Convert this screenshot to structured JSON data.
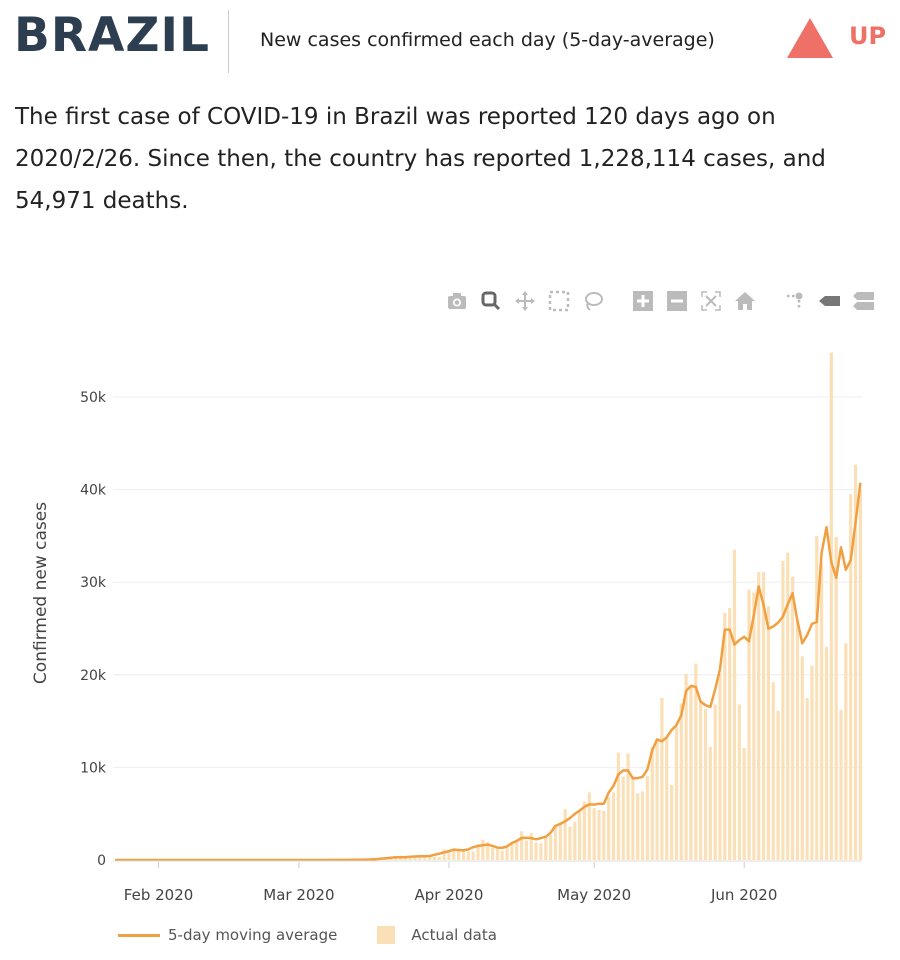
{
  "header": {
    "country": "BRAZIL",
    "subtitle": "New cases confirmed each day (5-day-average)",
    "trend_label": "UP",
    "trend_color": "#ee7067"
  },
  "summary": "The first case of COVID-19 in Brazil was reported 120 days ago on 2020/2/26. Since then, the country has reported 1,228,114 cases, and 54,971 deaths.",
  "toolbar": [
    "camera-icon",
    "zoom-icon",
    "pan-icon",
    "box-select-icon",
    "lasso-select-icon",
    "zoom-in-icon",
    "zoom-out-icon",
    "autoscale-icon",
    "reset-axes-icon",
    "spike-lines-icon",
    "hover-closest-icon",
    "hover-compare-icon"
  ],
  "chart_data": {
    "type": "bar",
    "start_date": "2020-01-23",
    "ylabel": "Confirmed new cases",
    "ylim": [
      0,
      55000
    ],
    "yticks": [
      {
        "v": 0,
        "label": "0"
      },
      {
        "v": 10000,
        "label": "10k"
      },
      {
        "v": 20000,
        "label": "20k"
      },
      {
        "v": 30000,
        "label": "30k"
      },
      {
        "v": 40000,
        "label": "40k"
      },
      {
        "v": 50000,
        "label": "50k"
      }
    ],
    "xticks": [
      {
        "date": "2020-02-01",
        "label": "Feb 2020"
      },
      {
        "date": "2020-03-01",
        "label": "Mar 2020"
      },
      {
        "date": "2020-04-01",
        "label": "Apr 2020"
      },
      {
        "date": "2020-05-01",
        "label": "May 2020"
      },
      {
        "date": "2020-06-01",
        "label": "Jun 2020"
      }
    ],
    "legend": {
      "line": "5-day moving average",
      "bar": "Actual data",
      "placement": "bottom-left"
    },
    "colors": {
      "line": "#f0a040",
      "bar": "#fbdfb6"
    },
    "values": [
      0,
      0,
      0,
      0,
      0,
      0,
      0,
      0,
      0,
      0,
      0,
      0,
      0,
      0,
      0,
      0,
      0,
      0,
      0,
      0,
      0,
      0,
      0,
      0,
      0,
      0,
      0,
      0,
      0,
      0,
      0,
      0,
      0,
      0,
      1,
      0,
      0,
      1,
      0,
      1,
      0,
      0,
      1,
      5,
      5,
      6,
      6,
      12,
      13,
      18,
      25,
      21,
      23,
      79,
      57,
      137,
      193,
      283,
      224,
      418,
      345,
      310,
      232,
      482,
      502,
      487,
      352,
      323,
      1138,
      1100,
      1200,
      1000,
      1200,
      900,
      900,
      1700,
      2200,
      1900,
      1300,
      1200,
      1000,
      1300,
      1800,
      2000,
      3100,
      2100,
      2900,
      1900,
      1800,
      2500,
      2700,
      3700,
      4000,
      5500,
      3600,
      4100,
      5400,
      6300,
      7300,
      5600,
      5400,
      5300,
      6800,
      7300,
      11600,
      9000,
      11500,
      9000,
      7200,
      7400,
      9100,
      12200,
      13000,
      17500,
      13300,
      8100,
      14400,
      16900,
      20100,
      18700,
      21200,
      17100,
      16300,
      12200,
      16800,
      20200,
      26700,
      27200,
      33500,
      16800,
      12100,
      29200,
      28900,
      31100,
      31100,
      27400,
      19200,
      16100,
      32300,
      33200,
      30600,
      25900,
      22000,
      17500,
      21000,
      35000,
      32000,
      23000,
      54800,
      34900,
      16200,
      23400,
      39500,
      42700,
      40000
    ]
  }
}
